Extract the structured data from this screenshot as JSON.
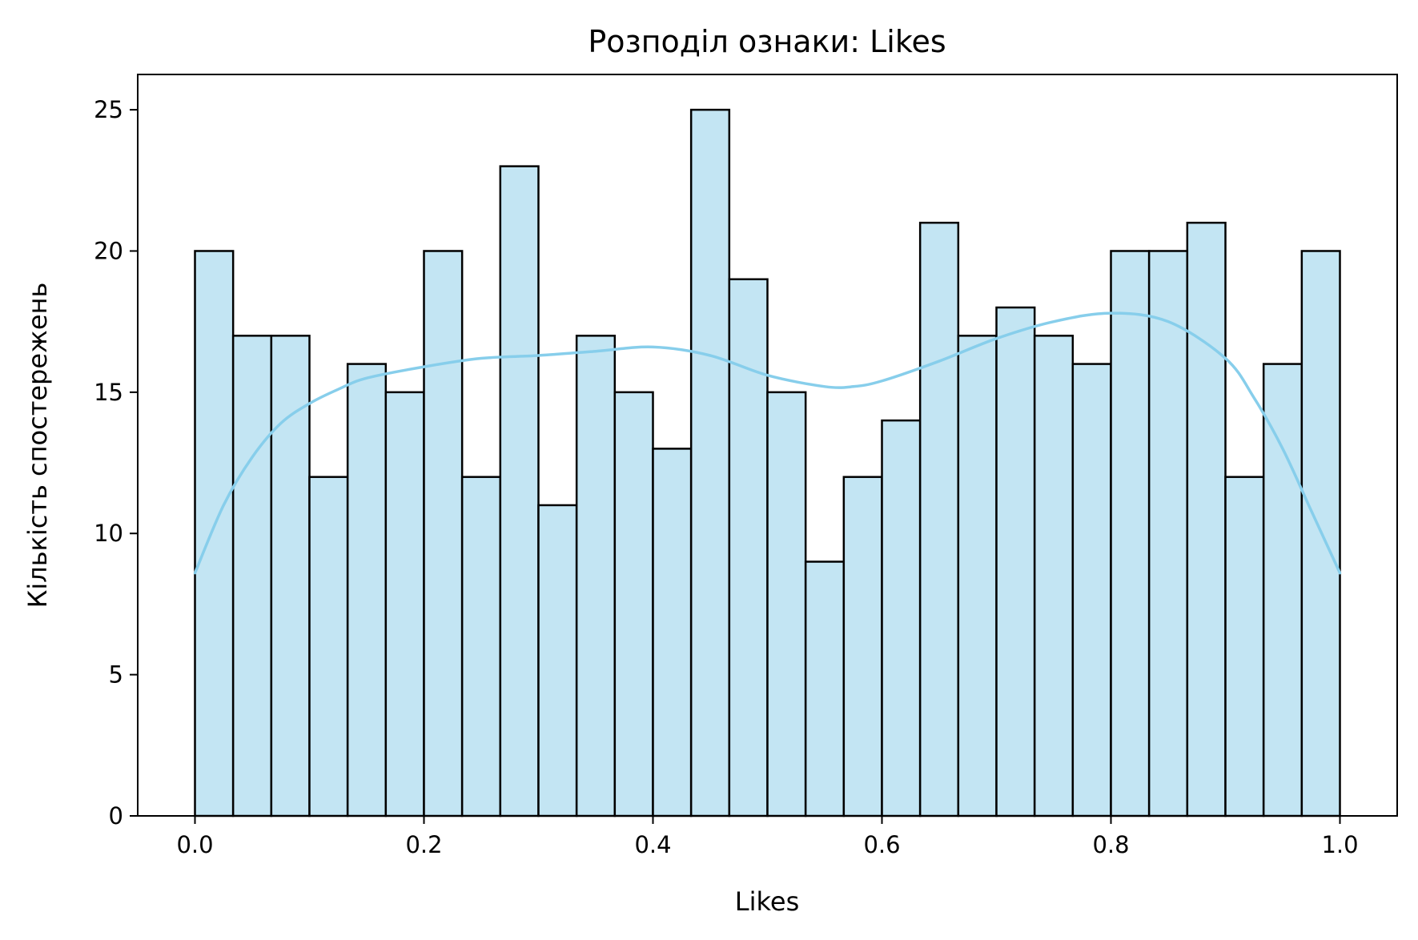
{
  "chart_data": {
    "type": "bar",
    "subtype": "histogram-with-kde",
    "title": "Розподіл ознаки: Likes",
    "xlabel": "Likes",
    "ylabel": "Кількість спостережень",
    "xlim": [
      -0.05,
      1.05
    ],
    "ylim": [
      0,
      26.25
    ],
    "xticks": [
      0.0,
      0.2,
      0.4,
      0.6,
      0.8,
      1.0
    ],
    "xtick_labels": [
      "0.0",
      "0.2",
      "0.4",
      "0.6",
      "0.8",
      "1.0"
    ],
    "yticks": [
      0,
      5,
      10,
      15,
      20,
      25
    ],
    "ytick_labels": [
      "0",
      "5",
      "10",
      "15",
      "20",
      "25"
    ],
    "bin_range": [
      0.0,
      1.0
    ],
    "bin_count": 30,
    "values": [
      20,
      17,
      17,
      12,
      16,
      15,
      20,
      12,
      23,
      11,
      17,
      15,
      13,
      25,
      19,
      15,
      9,
      12,
      14,
      21,
      17,
      18,
      17,
      16,
      20,
      20,
      21,
      12,
      16,
      20
    ],
    "kde": {
      "x": [
        0.0,
        0.025,
        0.05,
        0.075,
        0.1,
        0.125,
        0.15,
        0.2,
        0.25,
        0.3,
        0.35,
        0.4,
        0.45,
        0.5,
        0.55,
        0.575,
        0.6,
        0.65,
        0.7,
        0.75,
        0.8,
        0.85,
        0.9,
        0.925,
        0.95,
        0.975,
        1.0
      ],
      "y": [
        8.6,
        11.0,
        12.7,
        13.9,
        14.6,
        15.1,
        15.5,
        15.9,
        16.2,
        16.3,
        16.45,
        16.6,
        16.3,
        15.6,
        15.2,
        15.2,
        15.4,
        16.1,
        16.9,
        17.5,
        17.8,
        17.5,
        16.2,
        14.8,
        13.0,
        10.8,
        8.6
      ]
    },
    "bar_fill": "#c3e5f3",
    "bar_edge": "#000000",
    "kde_color": "#87ceeb",
    "grid": false,
    "legend": "none"
  }
}
